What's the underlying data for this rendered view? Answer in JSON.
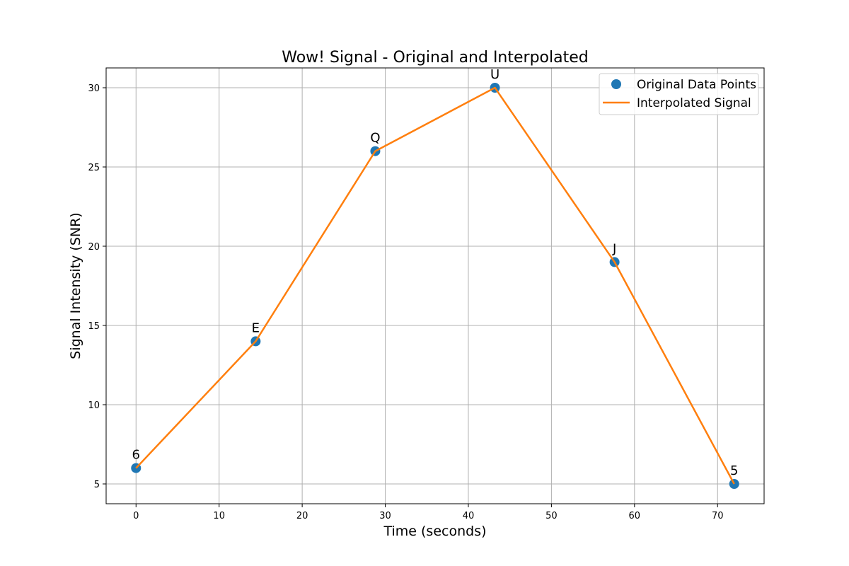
{
  "chart_data": {
    "type": "line",
    "title": "Wow! Signal - Original and Interpolated",
    "xlabel": "Time (seconds)",
    "ylabel": "Signal Intensity (SNR)",
    "xlim": [
      -3.6,
      75.6
    ],
    "ylim": [
      3.75,
      31.25
    ],
    "xticks": [
      0,
      10,
      20,
      30,
      40,
      50,
      60,
      70
    ],
    "yticks": [
      5,
      10,
      15,
      20,
      25,
      30
    ],
    "grid": true,
    "legend_position": "top-right",
    "series": [
      {
        "name": "Original Data Points",
        "kind": "scatter",
        "color": "#1f77b4",
        "x": [
          0,
          14.4,
          28.8,
          43.2,
          57.6,
          72
        ],
        "y": [
          6,
          14,
          26,
          30,
          19,
          5
        ],
        "point_labels": [
          "6",
          "E",
          "Q",
          "U",
          "J",
          "5"
        ]
      },
      {
        "name": "Interpolated Signal",
        "kind": "line",
        "color": "#ff7f0e",
        "x": [
          0,
          14.4,
          28.8,
          43.2,
          57.6,
          72
        ],
        "y": [
          6,
          14,
          26,
          30,
          19,
          5
        ]
      }
    ]
  }
}
